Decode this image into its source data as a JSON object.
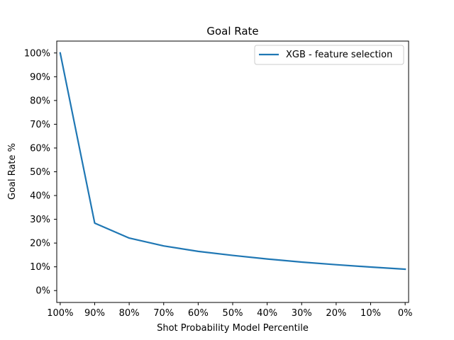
{
  "chart_data": {
    "type": "line",
    "title": "Goal Rate",
    "xlabel": "Shot Probability Model Percentile",
    "ylabel": "Goal Rate %",
    "x": [
      100,
      90,
      80,
      70,
      60,
      50,
      40,
      30,
      20,
      10,
      0
    ],
    "xlim": [
      101,
      -1
    ],
    "ylim": [
      -5,
      105
    ],
    "x_ticks": [
      100,
      90,
      80,
      70,
      60,
      50,
      40,
      30,
      20,
      10,
      0
    ],
    "x_tick_labels": [
      "100%",
      "90%",
      "80%",
      "70%",
      "60%",
      "50%",
      "40%",
      "30%",
      "20%",
      "10%",
      "0%"
    ],
    "y_ticks": [
      0,
      10,
      20,
      30,
      40,
      50,
      60,
      70,
      80,
      90,
      100
    ],
    "y_tick_labels": [
      "0%",
      "10%",
      "20%",
      "30%",
      "40%",
      "50%",
      "60%",
      "70%",
      "80%",
      "90%",
      "100%"
    ],
    "grid": false,
    "legend": "top-right",
    "series": [
      {
        "name": "XGB - feature selection",
        "color": "#1f77b4",
        "values": [
          100,
          28.4,
          22.1,
          18.8,
          16.5,
          14.8,
          13.3,
          12.0,
          10.9,
          9.9,
          9.0
        ]
      }
    ]
  }
}
